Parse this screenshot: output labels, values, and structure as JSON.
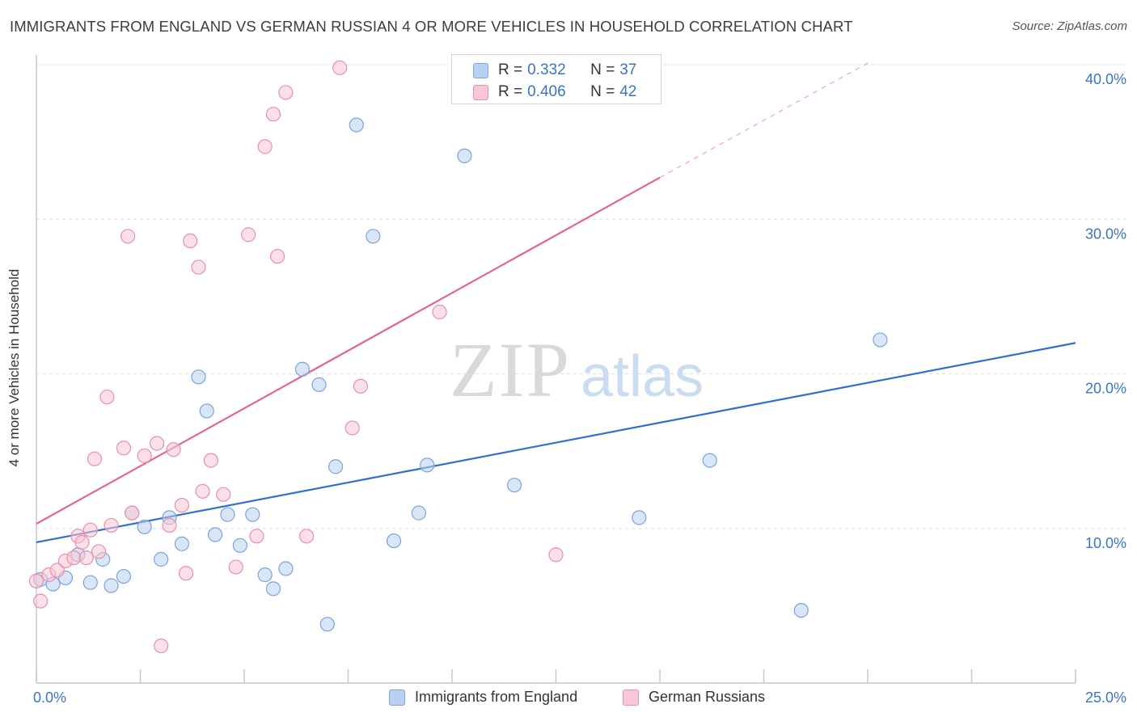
{
  "title": "IMMIGRANTS FROM ENGLAND VS GERMAN RUSSIAN 4 OR MORE VEHICLES IN HOUSEHOLD CORRELATION CHART",
  "source": "Source: ZipAtlas.com",
  "watermark": {
    "zip": "ZIP",
    "atlas": "atlas"
  },
  "legend": {
    "r_label": "R =",
    "n_label": "N =",
    "rows": [
      {
        "r": "0.332",
        "n": "37"
      },
      {
        "r": "0.406",
        "n": "42"
      }
    ]
  },
  "colors": {
    "blue_fill": "#b8d1f2",
    "blue_stroke": "#7aa4dc",
    "blue_line": "#2f6fcf",
    "pink_fill": "#f9c6d6",
    "pink_stroke": "#e88fa9",
    "pink_line": "#e06890",
    "tick_label": "#3a74c6",
    "grid": "#dddddd"
  },
  "chart_data": {
    "type": "scatter",
    "xlabel": "",
    "ylabel": "4 or more Vehicles in Household",
    "xlim": [
      0,
      25
    ],
    "ylim": [
      0,
      40
    ],
    "x_tick_labels": [
      {
        "value": 0,
        "label": "0.0%"
      },
      {
        "value": 25,
        "label": "25.0%"
      }
    ],
    "y_tick_labels": [
      {
        "value": 10,
        "label": "10.0%"
      },
      {
        "value": 20,
        "label": "20.0%"
      },
      {
        "value": 30,
        "label": "30.0%"
      },
      {
        "value": 40,
        "label": "40.0%"
      }
    ],
    "grid": true,
    "series": [
      {
        "name": "Immigrants from England",
        "color": "#b8d1f2",
        "trend": {
          "x": [
            0,
            25
          ],
          "y": [
            9.1,
            22.0
          ]
        },
        "points": [
          [
            0.1,
            6.7
          ],
          [
            0.4,
            6.4
          ],
          [
            0.7,
            6.8
          ],
          [
            1.0,
            8.3
          ],
          [
            1.3,
            6.5
          ],
          [
            1.6,
            8.0
          ],
          [
            1.8,
            6.3
          ],
          [
            2.1,
            6.9
          ],
          [
            2.3,
            11.0
          ],
          [
            2.6,
            10.1
          ],
          [
            3.0,
            8.0
          ],
          [
            3.2,
            10.7
          ],
          [
            3.5,
            9.0
          ],
          [
            3.9,
            19.8
          ],
          [
            4.1,
            17.6
          ],
          [
            4.3,
            9.6
          ],
          [
            4.6,
            10.9
          ],
          [
            4.9,
            8.9
          ],
          [
            5.2,
            10.9
          ],
          [
            5.5,
            7.0
          ],
          [
            5.7,
            6.1
          ],
          [
            6.0,
            7.4
          ],
          [
            6.4,
            20.3
          ],
          [
            6.8,
            19.3
          ],
          [
            7.0,
            3.8
          ],
          [
            7.2,
            14.0
          ],
          [
            7.7,
            36.1
          ],
          [
            8.1,
            28.9
          ],
          [
            8.6,
            9.2
          ],
          [
            9.2,
            11.0
          ],
          [
            9.4,
            14.1
          ],
          [
            10.3,
            34.1
          ],
          [
            11.5,
            12.8
          ],
          [
            14.5,
            10.7
          ],
          [
            16.2,
            14.4
          ],
          [
            18.4,
            4.7
          ],
          [
            20.3,
            22.2
          ]
        ]
      },
      {
        "name": "German Russians",
        "color": "#f9c6d6",
        "trend": {
          "x": [
            0,
            15
          ],
          "y": [
            10.3,
            32.7
          ]
        },
        "trend_dashed": {
          "x": [
            15,
            20
          ],
          "y": [
            32.7,
            40.1
          ]
        },
        "points": [
          [
            0.1,
            5.3
          ],
          [
            0.3,
            7.0
          ],
          [
            0.5,
            7.3
          ],
          [
            0.7,
            7.9
          ],
          [
            0.9,
            8.1
          ],
          [
            1.0,
            9.5
          ],
          [
            1.1,
            9.1
          ],
          [
            1.2,
            8.1
          ],
          [
            1.3,
            9.9
          ],
          [
            1.4,
            14.5
          ],
          [
            1.5,
            8.5
          ],
          [
            1.7,
            18.5
          ],
          [
            1.8,
            10.2
          ],
          [
            2.1,
            15.2
          ],
          [
            2.2,
            28.9
          ],
          [
            2.3,
            11.0
          ],
          [
            2.6,
            14.7
          ],
          [
            2.9,
            15.5
          ],
          [
            3.0,
            2.4
          ],
          [
            3.2,
            10.2
          ],
          [
            3.3,
            15.1
          ],
          [
            3.5,
            11.5
          ],
          [
            3.6,
            7.1
          ],
          [
            3.7,
            28.6
          ],
          [
            3.9,
            26.9
          ],
          [
            4.0,
            12.4
          ],
          [
            4.2,
            14.4
          ],
          [
            4.5,
            12.2
          ],
          [
            4.8,
            7.5
          ],
          [
            5.1,
            29.0
          ],
          [
            5.3,
            9.5
          ],
          [
            5.5,
            34.7
          ],
          [
            5.7,
            36.8
          ],
          [
            5.8,
            27.6
          ],
          [
            6.0,
            38.2
          ],
          [
            6.5,
            9.5
          ],
          [
            7.3,
            39.8
          ],
          [
            7.6,
            16.5
          ],
          [
            7.8,
            19.2
          ],
          [
            9.7,
            24.0
          ],
          [
            12.5,
            8.3
          ],
          [
            0.0,
            6.6
          ]
        ]
      }
    ]
  },
  "bottom_legend": [
    "Immigrants from England",
    "German Russians"
  ]
}
